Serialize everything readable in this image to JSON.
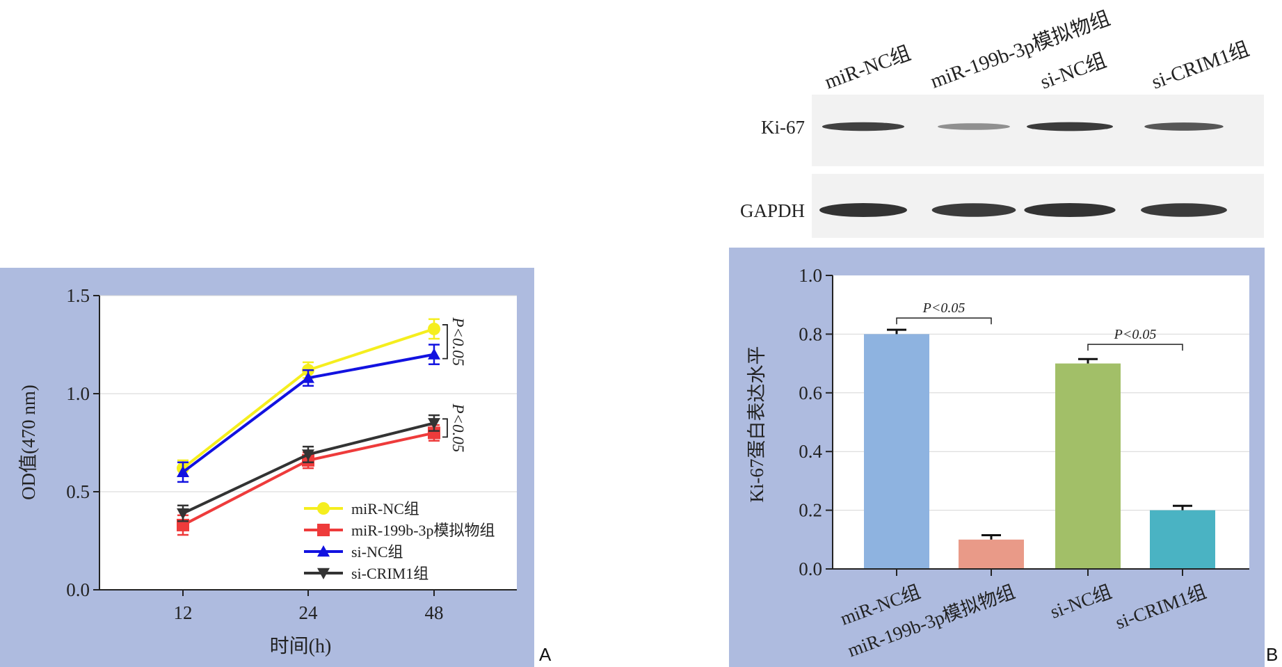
{
  "panel_labels": {
    "a": "A",
    "b": "B"
  },
  "colors": {
    "panel_bg": "#aebbdf",
    "yellow": "#f5ee1e",
    "red": "#ee3b3b",
    "blue": "#1212e0",
    "black": "#333333",
    "bar_blue": "#8eb3e0",
    "bar_salmon": "#e99a88",
    "bar_green": "#a2bf68",
    "bar_teal": "#4ab3c3"
  },
  "western_blot": {
    "lanes": [
      "miR-NC组",
      "miR-199b-3p模拟物组",
      "si-NC组",
      "si-CRIM1组"
    ],
    "rows": [
      {
        "label": "Ki-67",
        "intensities": [
          0.9,
          0.35,
          0.95,
          0.75
        ]
      },
      {
        "label": "GAPDH",
        "intensities": [
          1.0,
          0.95,
          1.0,
          0.95
        ]
      }
    ]
  },
  "chart_data": [
    {
      "type": "line",
      "title": "",
      "xlabel": "时间(h)",
      "ylabel": "OD值(470 nm)",
      "x": [
        12,
        24,
        48
      ],
      "ylim": [
        0.0,
        1.5
      ],
      "yticks": [
        "0.0",
        "0.5",
        "1.0",
        "1.5"
      ],
      "grid": true,
      "legend_position": "bottom-right",
      "series": [
        {
          "name": "miR-NC组",
          "marker": "circle",
          "color": "#f5ee1e",
          "values": [
            0.62,
            1.12,
            1.33
          ],
          "errors": [
            0.04,
            0.04,
            0.05
          ]
        },
        {
          "name": "miR-199b-3p模拟物组",
          "marker": "square",
          "color": "#ee3b3b",
          "values": [
            0.33,
            0.66,
            0.8
          ],
          "errors": [
            0.05,
            0.04,
            0.04
          ]
        },
        {
          "name": "si-NC组",
          "marker": "triangle-up",
          "color": "#1212e0",
          "values": [
            0.6,
            1.08,
            1.2
          ],
          "errors": [
            0.05,
            0.04,
            0.05
          ]
        },
        {
          "name": "si-CRIM1组",
          "marker": "triangle-down",
          "color": "#333333",
          "values": [
            0.39,
            0.69,
            0.85
          ],
          "errors": [
            0.04,
            0.04,
            0.04
          ]
        }
      ],
      "annotations": [
        {
          "text": "P<0.05",
          "between": [
            "miR-NC组",
            "si-NC组"
          ],
          "at_x": 48
        },
        {
          "text": "P<0.05",
          "between": [
            "si-CRIM1组",
            "miR-199b-3p模拟物组"
          ],
          "at_x": 48
        }
      ]
    },
    {
      "type": "bar",
      "title": "",
      "xlabel": "",
      "ylabel": "Ki-67蛋白表达水平",
      "categories": [
        "miR-NC组",
        "miR-199b-3p模拟物组",
        "si-NC组",
        "si-CRIM1组"
      ],
      "values": [
        0.8,
        0.1,
        0.7,
        0.2
      ],
      "errors": [
        0.015,
        0.015,
        0.015,
        0.015
      ],
      "colors": [
        "#8eb3e0",
        "#e99a88",
        "#a2bf68",
        "#4ab3c3"
      ],
      "ylim": [
        0.0,
        1.0
      ],
      "yticks": [
        "0.0",
        "0.2",
        "0.4",
        "0.6",
        "0.8",
        "1.0"
      ],
      "grid": true,
      "annotations": [
        {
          "text": "P<0.05",
          "between": [
            "miR-NC组",
            "miR-199b-3p模拟物组"
          ]
        },
        {
          "text": "P<0.05",
          "between": [
            "si-NC组",
            "si-CRIM1组"
          ]
        }
      ]
    }
  ]
}
